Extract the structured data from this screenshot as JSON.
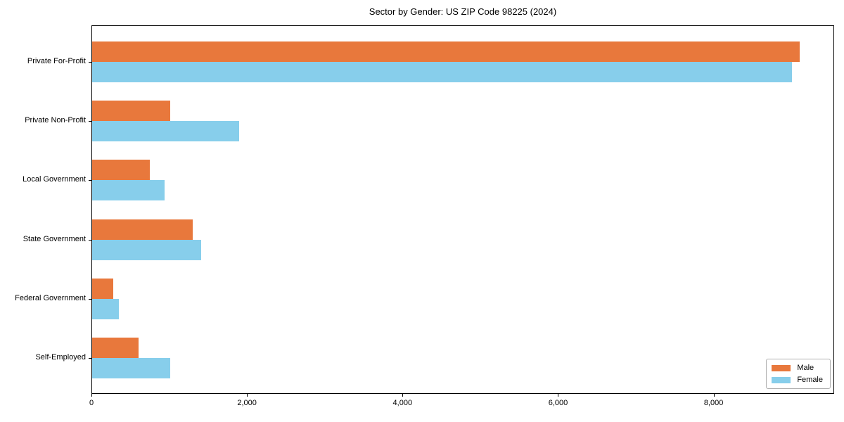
{
  "chart_data": {
    "type": "bar",
    "orientation": "horizontal",
    "title": "Sector by Gender: US ZIP Code 98225 (2024)",
    "categories": [
      "Private For-Profit",
      "Private Non-Profit",
      "Local Government",
      "State Government",
      "Federal Government",
      "Self-Employed"
    ],
    "series": [
      {
        "name": "Male",
        "color": "#E8783C",
        "values": [
          9100,
          1000,
          740,
          1290,
          270,
          600
        ]
      },
      {
        "name": "Female",
        "color": "#87CEEB",
        "values": [
          9000,
          1890,
          930,
          1400,
          340,
          1000
        ]
      }
    ],
    "xlabel": "",
    "ylabel": "",
    "xlim": [
      0,
      9550
    ],
    "xticks": [
      0,
      2000,
      4000,
      6000,
      8000
    ],
    "xtick_labels": [
      "0",
      "2,000",
      "4,000",
      "6,000",
      "8,000"
    ],
    "grid": false,
    "legend_position": "lower right",
    "background_color": "#ffffff",
    "axis_color": "#000000"
  }
}
